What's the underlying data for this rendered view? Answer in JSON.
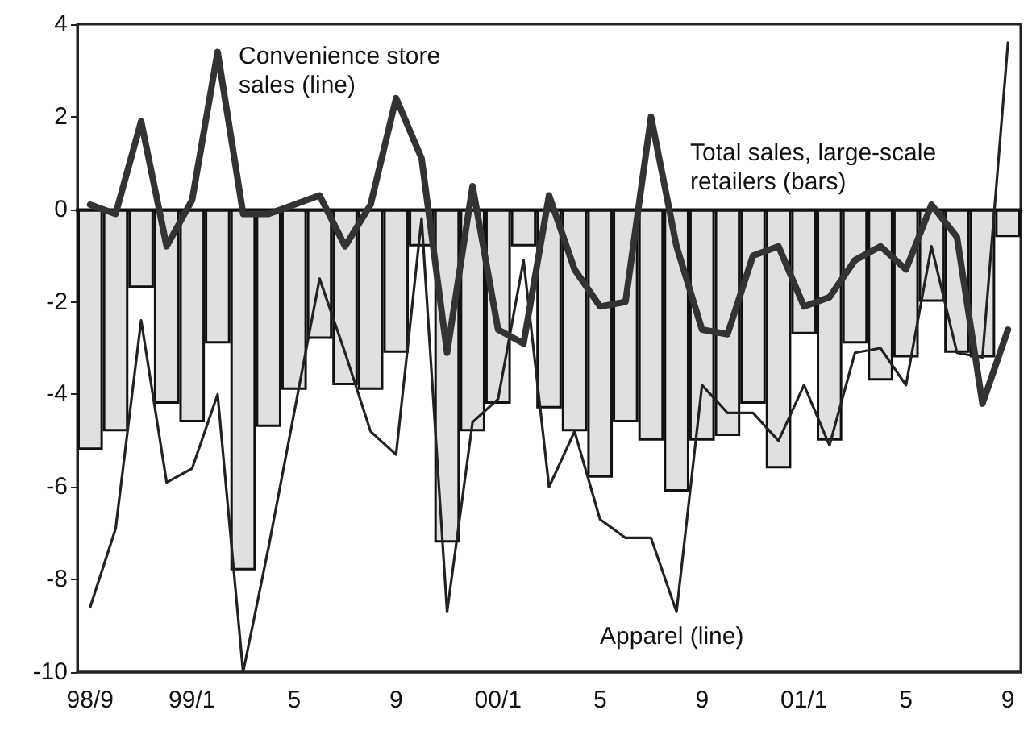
{
  "chart_data": {
    "type": "bar",
    "categories": [
      "98/9",
      null,
      null,
      null,
      "99/1",
      null,
      null,
      null,
      "5",
      null,
      null,
      null,
      "9",
      null,
      null,
      null,
      "00/1",
      null,
      null,
      null,
      "5",
      null,
      null,
      null,
      "9",
      null,
      null,
      null,
      "01/1",
      null,
      null,
      null,
      "5",
      null,
      null,
      null,
      "9"
    ],
    "series": [
      {
        "color": "#e0e0e0",
        "values": [
          -5.2,
          -4.8,
          -1.7,
          -4.2,
          -4.6,
          -2.9,
          -7.8,
          -4.7,
          -3.9,
          -2.8,
          -3.8,
          -3.9,
          -3.1,
          -0.8,
          -7.2,
          -4.8,
          -4.2,
          -0.8,
          -4.3,
          -4.8,
          -5.8,
          -4.6,
          -5.0,
          -6.1,
          -5.0,
          -4.9,
          -4.2,
          -5.6,
          -2.7,
          -5.0,
          -2.9,
          -3.7,
          -3.2,
          -2.0,
          -3.1,
          -3.2,
          -0.6
        ]
      },
      {
        "type": "line",
        "color": "#222222",
        "values": [
          -8.6,
          -6.9,
          -2.4,
          -5.9,
          -5.6,
          -4.0,
          -10.0,
          -7.3,
          -4.4,
          -1.5,
          -3.1,
          -4.8,
          -5.3,
          -0.2,
          -8.7,
          -4.6,
          -4.1,
          -1.1,
          -6.0,
          -4.8,
          -6.7,
          -7.1,
          -7.1,
          -8.7,
          -3.8,
          -4.4,
          -4.4,
          -5.0,
          -3.8,
          -5.1,
          -3.1,
          -3.0,
          -3.8,
          -0.8,
          -3.1,
          -3.2,
          3.6
        ]
      },
      {
        "type": "line",
        "color": "#333333",
        "values": [
          0.1,
          -0.1,
          1.9,
          -0.8,
          0.2,
          3.4,
          -0.1,
          -0.1,
          0.1,
          0.3,
          -0.8,
          0.1,
          2.4,
          1.1,
          -3.1,
          0.5,
          -2.6,
          -2.9,
          0.3,
          -1.3,
          -2.1,
          -2.0,
          2.0,
          -0.8,
          -2.6,
          -2.7,
          -1.0,
          -0.8,
          -2.1,
          -1.9,
          -1.1,
          -0.8,
          -1.3,
          0.1,
          -0.6,
          -4.2,
          -2.6
        ]
      }
    ],
    "ylim": [
      -10,
      4
    ],
    "yticks": [
      -10,
      -8,
      -6,
      -4,
      -2,
      0,
      2,
      4
    ],
    "marker": "none",
    "annotations": [
      "Convenience store\nsales (line)",
      "Total sales, large-scale\nretailers (bars)",
      "Apparel (line)"
    ]
  }
}
